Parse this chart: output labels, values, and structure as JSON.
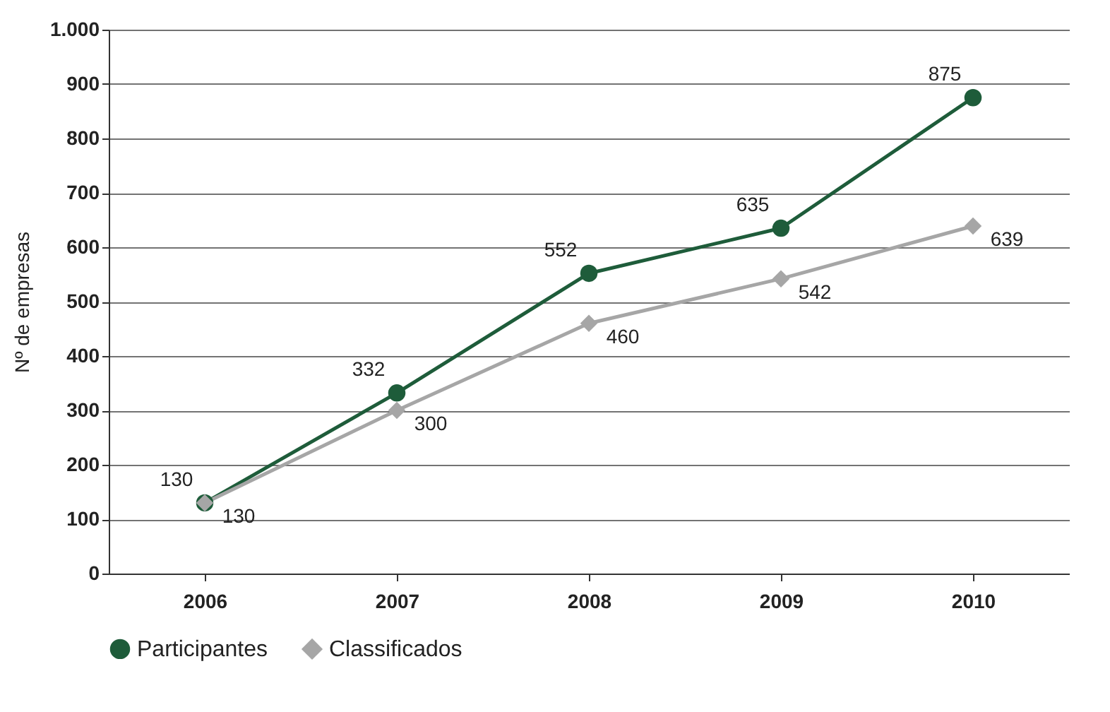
{
  "chart_data": {
    "type": "line",
    "ylabel": "Nº de empresas",
    "categories": [
      "2006",
      "2007",
      "2008",
      "2009",
      "2010"
    ],
    "series": [
      {
        "name": "Participantes",
        "color": "#1e5c3a",
        "marker": "circle",
        "values": [
          130,
          332,
          552,
          635,
          875
        ]
      },
      {
        "name": "Classificados",
        "color": "#a6a6a6",
        "marker": "diamond",
        "values": [
          130,
          300,
          460,
          542,
          639
        ]
      }
    ],
    "ylim": [
      0,
      1000
    ],
    "yticks": [
      0,
      100,
      200,
      300,
      400,
      500,
      600,
      700,
      800,
      900,
      {
        "value": 1000,
        "label": "1.000"
      }
    ],
    "grid": "y",
    "legend": "bottom",
    "data_labels": true,
    "line_style": "solid"
  }
}
